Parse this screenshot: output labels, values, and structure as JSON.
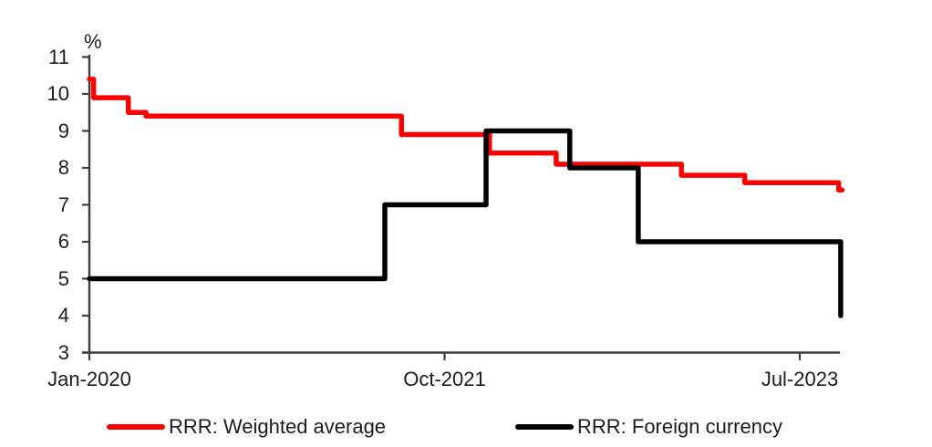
{
  "chart_data": {
    "type": "line",
    "subtype": "step",
    "title": "",
    "xlabel": "",
    "ylabel": "%",
    "ylim": [
      3,
      11
    ],
    "y_ticks": [
      3,
      4,
      5,
      6,
      7,
      8,
      9,
      10,
      11
    ],
    "x_ticks": [
      {
        "label": "Jan-2020",
        "month_index": 0
      },
      {
        "label": "Oct-2021",
        "month_index": 21
      },
      {
        "label": "Jul-2023",
        "month_index": 42
      }
    ],
    "x_range_months": [
      0,
      44.5
    ],
    "grid": false,
    "legend_position": "bottom",
    "axis_color": "#3d3d3d",
    "series": [
      {
        "name": "RRR: Weighted average",
        "color": "#ff0000",
        "end_month": 44.5,
        "steps": [
          [
            0,
            10.4
          ],
          [
            0.25,
            9.9
          ],
          [
            2.3,
            9.5
          ],
          [
            3.35,
            9.4
          ],
          [
            18.45,
            8.9
          ],
          [
            23.65,
            8.4
          ],
          [
            27.6,
            8.1
          ],
          [
            35.0,
            7.8
          ],
          [
            38.75,
            7.6
          ],
          [
            44.3,
            7.4
          ]
        ]
      },
      {
        "name": "RRR: Foreign currency",
        "color": "#000000",
        "end_month": 44.42,
        "steps": [
          [
            0,
            5
          ],
          [
            17.47,
            7
          ],
          [
            23.45,
            9
          ],
          [
            28.4,
            8
          ],
          [
            32.45,
            6
          ],
          [
            44.42,
            4
          ]
        ]
      }
    ]
  }
}
